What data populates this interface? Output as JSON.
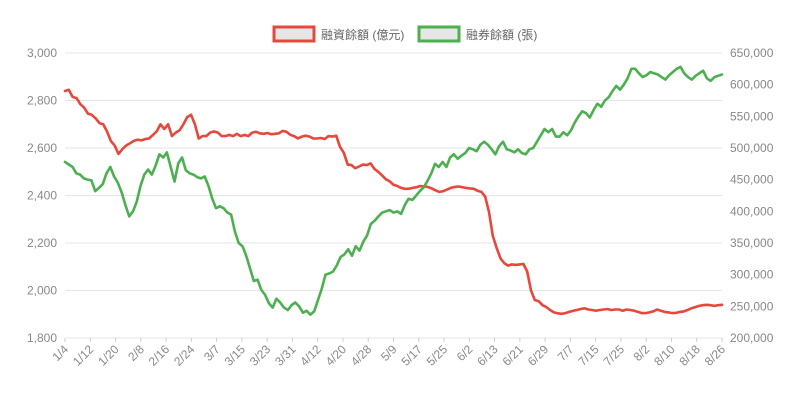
{
  "chart_data": {
    "type": "line",
    "title": "",
    "legend_position": "top-center",
    "grid": true,
    "left_axis": {
      "ticks": [
        "1,800",
        "2,000",
        "2,200",
        "2,400",
        "2,600",
        "2,800",
        "3,000"
      ],
      "min": 1800,
      "max": 3000,
      "step": 200
    },
    "right_axis": {
      "ticks": [
        "200,000",
        "250,000",
        "300,000",
        "350,000",
        "400,000",
        "450,000",
        "500,000",
        "550,000",
        "600,000",
        "650,000"
      ],
      "min": 200000,
      "max": 650000,
      "step": 50000
    },
    "x_tick_labels": [
      "1/4",
      "1/12",
      "1/20",
      "2/8",
      "2/16",
      "2/24",
      "3/7",
      "3/15",
      "3/23",
      "3/31",
      "4/12",
      "4/20",
      "4/28",
      "5/9",
      "5/17",
      "5/25",
      "6/2",
      "6/13",
      "6/21",
      "6/29",
      "7/7",
      "7/15",
      "7/25",
      "8/2",
      "8/10",
      "8/18",
      "8/26"
    ],
    "series": [
      {
        "name": "融資餘額 (億元)",
        "axis": "left",
        "color": "#e8473c",
        "values": [
          2840,
          2845,
          2815,
          2810,
          2785,
          2770,
          2745,
          2740,
          2725,
          2705,
          2700,
          2670,
          2630,
          2610,
          2575,
          2595,
          2610,
          2620,
          2630,
          2635,
          2632,
          2638,
          2640,
          2655,
          2670,
          2700,
          2680,
          2700,
          2650,
          2665,
          2675,
          2700,
          2730,
          2740,
          2700,
          2640,
          2650,
          2650,
          2665,
          2670,
          2665,
          2650,
          2650,
          2655,
          2650,
          2660,
          2650,
          2655,
          2650,
          2665,
          2668,
          2662,
          2660,
          2663,
          2658,
          2660,
          2662,
          2672,
          2668,
          2655,
          2650,
          2640,
          2648,
          2652,
          2648,
          2640,
          2640,
          2642,
          2638,
          2650,
          2648,
          2652,
          2605,
          2580,
          2530,
          2528,
          2515,
          2522,
          2530,
          2528,
          2535,
          2512,
          2500,
          2485,
          2468,
          2460,
          2445,
          2440,
          2432,
          2428,
          2428,
          2432,
          2435,
          2440,
          2438,
          2436,
          2430,
          2422,
          2415,
          2418,
          2425,
          2432,
          2436,
          2438,
          2435,
          2432,
          2430,
          2428,
          2420,
          2415,
          2395,
          2330,
          2230,
          2180,
          2135,
          2115,
          2105,
          2110,
          2108,
          2110,
          2112,
          2080,
          2000,
          1960,
          1955,
          1938,
          1930,
          1918,
          1908,
          1904,
          1902,
          1905,
          1910,
          1914,
          1918,
          1922,
          1925,
          1920,
          1918,
          1915,
          1918,
          1920,
          1922,
          1918,
          1920,
          1920,
          1915,
          1920,
          1918,
          1915,
          1910,
          1905,
          1905,
          1908,
          1912,
          1920,
          1915,
          1910,
          1908,
          1905,
          1906,
          1910,
          1912,
          1918,
          1925,
          1930,
          1935,
          1938,
          1940,
          1938,
          1935,
          1938,
          1940
        ]
      },
      {
        "name": "融券餘額 (張)",
        "axis": "right",
        "color": "#4caf50",
        "values": [
          478000,
          474000,
          470000,
          460000,
          458000,
          452000,
          450000,
          449000,
          432000,
          437000,
          443000,
          460000,
          470000,
          455000,
          445000,
          430000,
          410000,
          392000,
          400000,
          415000,
          440000,
          458000,
          466000,
          458000,
          472000,
          490000,
          485000,
          493000,
          470000,
          447000,
          476000,
          485000,
          465000,
          460000,
          458000,
          454000,
          452000,
          455000,
          440000,
          420000,
          405000,
          408000,
          405000,
          398000,
          395000,
          368000,
          350000,
          345000,
          330000,
          310000,
          290000,
          292000,
          276000,
          268000,
          255000,
          248000,
          262000,
          256000,
          248000,
          244000,
          252000,
          256000,
          250000,
          240000,
          243000,
          237000,
          242000,
          260000,
          278000,
          300000,
          302000,
          305000,
          315000,
          328000,
          332000,
          340000,
          330000,
          345000,
          338000,
          352000,
          362000,
          380000,
          385000,
          392000,
          398000,
          400000,
          402000,
          398000,
          400000,
          396000,
          410000,
          420000,
          418000,
          425000,
          432000,
          438000,
          448000,
          460000,
          475000,
          470000,
          478000,
          470000,
          485000,
          490000,
          483000,
          488000,
          492000,
          500000,
          498000,
          495000,
          505000,
          510000,
          505000,
          498000,
          490000,
          503000,
          510000,
          498000,
          496000,
          493000,
          498000,
          492000,
          490000,
          498000,
          500000,
          510000,
          520000,
          530000,
          525000,
          530000,
          518000,
          518000,
          525000,
          520000,
          528000,
          540000,
          550000,
          558000,
          555000,
          548000,
          560000,
          570000,
          565000,
          575000,
          580000,
          590000,
          598000,
          592000,
          600000,
          610000,
          625000,
          625000,
          618000,
          612000,
          615000,
          620000,
          618000,
          616000,
          612000,
          608000,
          615000,
          620000,
          625000,
          628000,
          618000,
          612000,
          608000,
          614000,
          618000,
          622000,
          610000,
          606000,
          612000,
          614000,
          616000
        ]
      }
    ]
  }
}
